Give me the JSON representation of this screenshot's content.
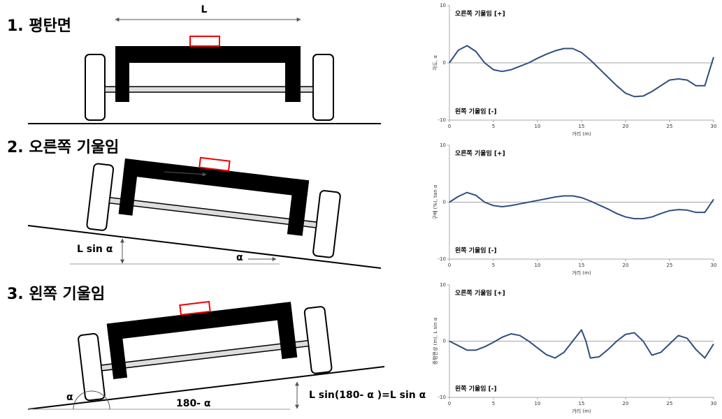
{
  "diagram": {
    "titles": [
      "1. 평탄면",
      "2. 오른쪽 기울임",
      "3. 왼쪽 기울임"
    ],
    "labels": [
      "L",
      "α",
      "L sin α",
      "α",
      "α",
      "180- α",
      "L sin(180- α )=L sin α"
    ]
  },
  "chart_data": [
    {
      "type": "line",
      "ylabel": "각도, α",
      "xlabel": "거리 (m)",
      "top_note": "오른쪽 기울임 [+]",
      "bottom_note": "왼쪽 기울임 [-]",
      "xlim": [
        0,
        30
      ],
      "xticks": [
        0,
        5,
        10,
        15,
        20,
        25,
        30
      ],
      "ylim": [
        -10,
        10
      ],
      "yticks": [
        -10,
        0,
        10
      ],
      "hline": 0,
      "color": "#2f4f7f",
      "x": [
        0,
        1,
        2,
        3,
        4,
        5,
        6,
        7,
        8,
        9,
        10,
        11,
        12,
        13,
        14,
        15,
        16,
        17,
        18,
        19,
        20,
        21,
        22,
        23,
        24,
        25,
        26,
        27,
        28,
        29,
        30
      ],
      "values": [
        0,
        2.2,
        3,
        2,
        0,
        -1.2,
        -1.5,
        -1.2,
        -0.6,
        0,
        0.8,
        1.5,
        2.1,
        2.5,
        2.5,
        1.8,
        0.5,
        -1,
        -2.5,
        -4,
        -5.3,
        -5.9,
        -5.8,
        -5,
        -4,
        -3,
        -2.8,
        -3,
        -4,
        -4,
        1
      ]
    },
    {
      "type": "line",
      "ylabel": "구배 (%), tan α",
      "xlabel": "거리 (m)",
      "top_note": "오른쪽 기울임 [+]",
      "bottom_note": "왼쪽 기울임 [-]",
      "xlim": [
        0,
        30
      ],
      "xticks": [
        0,
        5,
        10,
        15,
        20,
        25,
        30
      ],
      "ylim": [
        -10,
        10
      ],
      "yticks": [
        -10,
        0,
        10
      ],
      "hline": 0,
      "color": "#2f4f7f",
      "x": [
        0,
        1,
        2,
        3,
        4,
        5,
        6,
        7,
        8,
        9,
        10,
        11,
        12,
        13,
        14,
        15,
        16,
        17,
        18,
        19,
        20,
        21,
        22,
        23,
        24,
        25,
        26,
        27,
        28,
        29,
        30
      ],
      "values": [
        0,
        1,
        1.7,
        1.2,
        0,
        -0.6,
        -0.8,
        -0.6,
        -0.3,
        0,
        0.3,
        0.6,
        0.9,
        1.1,
        1.1,
        0.8,
        0.2,
        -0.5,
        -1.2,
        -2,
        -2.6,
        -2.9,
        -2.9,
        -2.6,
        -2,
        -1.5,
        -1.3,
        -1.4,
        -1.8,
        -1.8,
        0.5
      ]
    },
    {
      "type": "line",
      "ylabel": "종평편상 (m), L sin α",
      "xlabel": "거리 (m)",
      "top_note": "오른쪽 기울임 [+]",
      "bottom_note": "왼쪽 기울임 [-]",
      "xlim": [
        0,
        30
      ],
      "xticks": [
        0,
        5,
        10,
        15,
        20,
        25,
        30
      ],
      "ylim": [
        -10,
        10
      ],
      "yticks": [
        -10,
        0,
        10
      ],
      "hline": 0,
      "color": "#2f4f7f",
      "x": [
        0,
        1,
        2,
        3,
        4,
        5,
        6,
        7,
        8,
        9,
        10,
        11,
        12,
        13,
        14,
        15,
        15.5,
        16,
        17,
        18,
        19,
        20,
        21,
        22,
        23,
        24,
        25,
        26,
        27,
        28,
        29,
        30
      ],
      "values": [
        0,
        -0.8,
        -1.6,
        -1.6,
        -1,
        -0.2,
        0.7,
        1.3,
        1,
        0,
        -1.2,
        -2.4,
        -3,
        -2,
        0,
        2,
        0,
        -3,
        -2.8,
        -1.5,
        0,
        1.2,
        1.5,
        0,
        -2.5,
        -2,
        -0.5,
        1,
        0.5,
        -1.5,
        -3,
        -0.5
      ]
    }
  ]
}
